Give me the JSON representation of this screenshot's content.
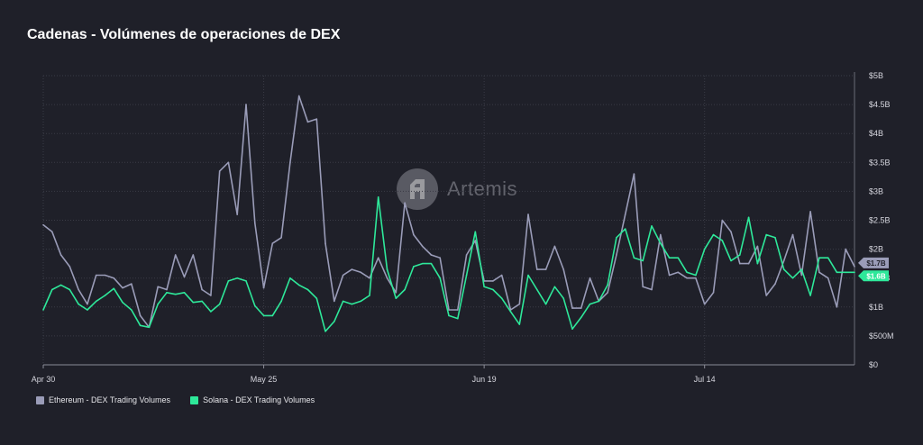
{
  "title": "Cadenas - Volúmenes de operaciones de DEX",
  "watermark": "Artemis",
  "legend": {
    "ethereum": "Ethereum - DEX Trading Volumes",
    "solana": "Solana - DEX Trading Volumes"
  },
  "colors": {
    "ethereum": "#9a9cb8",
    "solana": "#2ee89a",
    "background": "#1f2029",
    "grid": "#3a3b46"
  },
  "end_labels": {
    "ethereum": "$1.7B",
    "solana": "$1.6B"
  },
  "chart_data": {
    "type": "line",
    "start_date": "2024-04-30",
    "x_tick_labels": [
      "Apr 30",
      "May 25",
      "Jun 19",
      "Jul 14"
    ],
    "x_tick_days": [
      0,
      25,
      50,
      75
    ],
    "y_tick_labels": [
      "$0",
      "$500M",
      "$1B",
      "$1.5B",
      "$2B",
      "$2.5B",
      "$3B",
      "$3.5B",
      "$4B",
      "$4.5B",
      "$5B"
    ],
    "y_tick_values": [
      0,
      0.5,
      1,
      1.5,
      2,
      2.5,
      3,
      3.5,
      4,
      4.5,
      5
    ],
    "ylim": [
      0,
      5
    ],
    "y_unit": "billions USD",
    "grid": true,
    "legend_position": "bottom-left",
    "series": [
      {
        "name": "Ethereum - DEX Trading Volumes",
        "values": [
          2.42,
          2.3,
          1.9,
          1.7,
          1.3,
          1.05,
          1.55,
          1.55,
          1.5,
          1.33,
          1.4,
          0.85,
          0.65,
          1.35,
          1.3,
          1.9,
          1.52,
          1.9,
          1.3,
          1.2,
          3.35,
          3.5,
          2.6,
          4.5,
          2.45,
          1.33,
          2.1,
          2.2,
          3.5,
          4.65,
          4.2,
          4.25,
          2.1,
          1.1,
          1.55,
          1.65,
          1.6,
          1.5,
          1.85,
          1.5,
          1.25,
          2.8,
          2.25,
          2.05,
          1.9,
          1.85,
          0.95,
          0.95,
          1.9,
          2.15,
          1.45,
          1.45,
          1.55,
          0.95,
          1.05,
          2.6,
          1.65,
          1.65,
          2.05,
          1.65,
          0.98,
          0.98,
          1.5,
          1.1,
          1.25,
          1.9,
          2.6,
          3.3,
          1.35,
          1.3,
          2.25,
          1.55,
          1.6,
          1.5,
          1.5,
          1.05,
          1.25,
          2.5,
          2.3,
          1.75,
          1.75,
          2.05,
          1.2,
          1.4,
          1.8,
          2.25,
          1.55,
          2.65,
          1.6,
          1.5,
          1.0,
          2.0,
          1.7
        ]
      },
      {
        "name": "Solana - DEX Trading Volumes",
        "values": [
          0.95,
          1.3,
          1.38,
          1.3,
          1.05,
          0.95,
          1.1,
          1.2,
          1.32,
          1.08,
          0.95,
          0.68,
          0.65,
          1.05,
          1.25,
          1.22,
          1.25,
          1.08,
          1.1,
          0.92,
          1.05,
          1.45,
          1.5,
          1.45,
          1.02,
          0.85,
          0.85,
          1.1,
          1.5,
          1.38,
          1.3,
          1.15,
          0.58,
          0.75,
          1.1,
          1.05,
          1.1,
          1.2,
          2.9,
          1.65,
          1.15,
          1.3,
          1.7,
          1.75,
          1.75,
          1.5,
          0.85,
          0.8,
          1.55,
          2.3,
          1.35,
          1.3,
          1.15,
          0.92,
          0.7,
          1.55,
          1.3,
          1.05,
          1.35,
          1.15,
          0.62,
          0.82,
          1.05,
          1.1,
          1.38,
          2.2,
          2.35,
          1.85,
          1.8,
          2.4,
          2.1,
          1.85,
          1.85,
          1.6,
          1.55,
          2.0,
          2.25,
          2.15,
          1.8,
          1.9,
          2.55,
          1.75,
          2.25,
          2.2,
          1.65,
          1.5,
          1.65,
          1.2,
          1.85,
          1.85,
          1.6,
          1.6,
          1.6
        ]
      }
    ]
  }
}
